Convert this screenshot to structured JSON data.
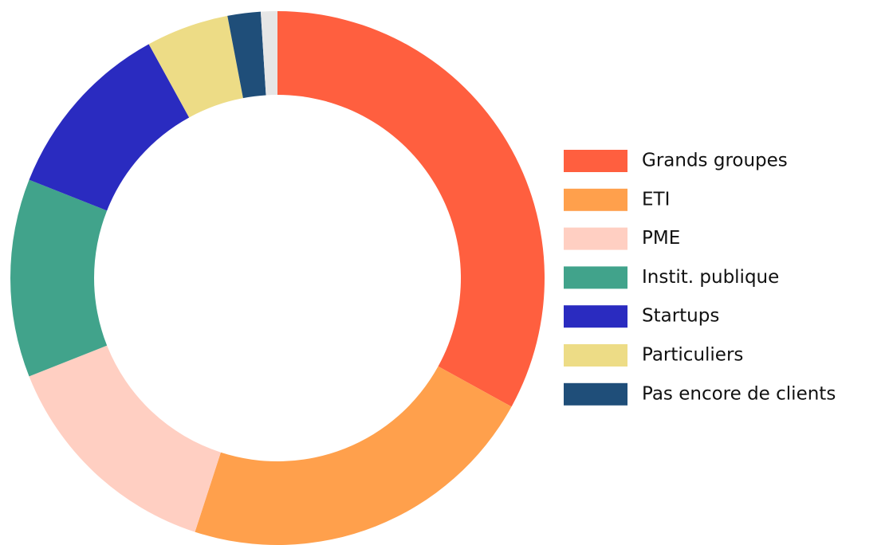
{
  "chart_data": {
    "type": "donut",
    "categories": [
      "Grands groupes",
      "ETI",
      "PME",
      "Instit. publique",
      "Startups",
      "Particuliers",
      "Pas encore de clients",
      null
    ],
    "values": [
      33,
      22,
      14,
      12,
      11,
      5,
      2,
      1
    ],
    "colors": [
      "#ff5f3f",
      "#ffa04c",
      "#ffcfc2",
      "#41a38b",
      "#2a2bc0",
      "#eddc86",
      "#1f4e79",
      "#e6e6e6"
    ],
    "legend": "right"
  }
}
